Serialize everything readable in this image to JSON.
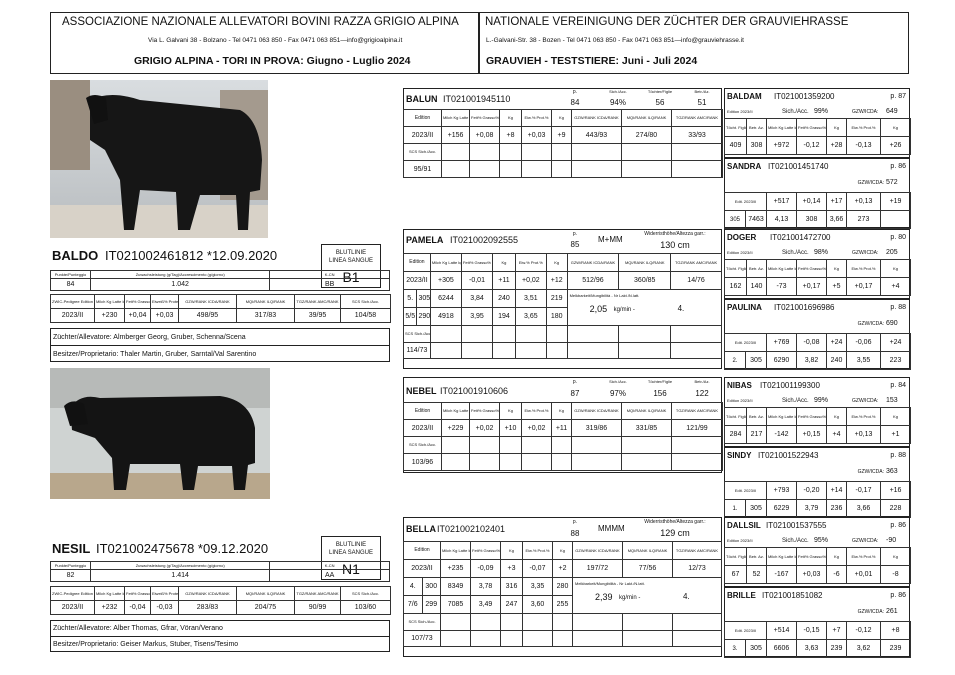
{
  "header": {
    "left_title": "ASSOCIAZIONE NAZIONALE ALLEVATORI BOVINI RAZZA GRIGIO ALPINA",
    "left_address": "Via L. Galvani 38 - Bolzano - Tel 0471 063 850 - Fax  0471 063 851—info@grigioalpina.it",
    "left_subtitle": "GRIGIO ALPINA - TORI IN PROVA: Giugno - Luglio 2024",
    "right_title": "NATIONALE VEREINIGUNG DER ZÜCHTER DER GRAUVIEHRASSE",
    "right_address": "L.-Galvani-Str. 38 - Bozen - Tel 0471 063 850 - Fax  0471 063 851—info@grauviehrasse.it",
    "right_subtitle": "GRAUVIEH - TESTSTIERE:  Juni - Juli 2024"
  },
  "labels": {
    "pp": "p.",
    "sich": "Sich./Acc.",
    "tochter": "Töchter/Figlie",
    "betr": "Betr./Az.",
    "edition": "Edition",
    "milch": "Milch Kg Latte kg",
    "fett": "Fett% Grasso%",
    "kg": "Kg",
    "eiw": "Eiw.% Prot.%",
    "gzw": "GZW/RANK ICDA/RANK",
    "mqi": "MQI/RANK ILQ/RANK",
    "tgz": "TGZ/RANK AMC/RANK",
    "scs": "SCS Sich./Acc.",
    "widerrist": "Widerristhöhe/Altezza garr.:",
    "melk": "Melkbarkeit/Mungibilità - Nr Lakt./N.latt.",
    "kgmin": "kg/min -",
    "edition2": "Edition 2023/II",
    "sich2": "Sich./Acc.",
    "gzw_icda": "GZW/ICDA:",
    "gzw_acc": "GZW :",
    "tocht_figlie": "Töcht. Figlie",
    "betr_az": "Betr. Az.",
    "kg2": "Kg",
    "hl_s": "HL. s.",
    "edit": "Edit. 2023/II",
    "blutlinie": "BLUTLINIE",
    "linea": "LINEA SANGUE",
    "punkte": "Punkte/Punteggio",
    "zuwachs": "Zuwachsleistung (g/Tag)/Accrescimento (g/giorno)",
    "kcn": "K-CN",
    "zwic": "ZWIC-Pedigree Edition",
    "milch_b": "Milch Kg Latte kg",
    "fett_b": "Fett% Grasso%",
    "eiw_b": "Eiweiß% Proteine%",
    "scs_b": "SCS Sich./Acc."
  },
  "bulls": [
    {
      "name": "BALDO",
      "code": "IT021002461812 *12.09.2020",
      "linea": "B1",
      "punteggio": "84",
      "accrescimento": "1.042",
      "kcn": "BB",
      "edition": "2023/II",
      "milch": "+230",
      "fett": "+0,04",
      "eiw": "+0,03",
      "gzw": "498/95",
      "mqi": "317/83",
      "tgz": "39/95",
      "scs": "104/58",
      "zuechter": "Züchter/Allevatore: Almberger Georg, Gruber, Schenna/Scena",
      "besitzer": "Besitzer/Proprietario: Thaler Martin, Gruber, Sarntal/Val Sarentino"
    },
    {
      "name": "NESIL",
      "code": "IT021002475678 *09.12.2020",
      "linea": "N1",
      "punteggio": "82",
      "accrescimento": "1.414",
      "kcn": "AA",
      "edition": "2023/II",
      "milch": "+232",
      "fett": "-0,04",
      "eiw": "-0,03",
      "gzw": "283/83",
      "mqi": "204/75",
      "tgz": "90/99",
      "scs": "103/60",
      "zuechter": "Züchter/Allevatore: Alber Thomas, Gfrar, Vöran/Verano",
      "besitzer": "Besitzer/Proprietario:  Geiser Markus, Stuber, Tisens/Tesimo"
    }
  ],
  "sires": [
    {
      "name": "BALUN",
      "code": "IT021001945110",
      "p": "84",
      "sich": "94%",
      "tochter": "56",
      "betr": "51",
      "edition": "2023/II",
      "milch": "+156",
      "fett": "+0,08",
      "kg": "+8",
      "eiw": "+0,03",
      "kg2": "+9",
      "gzw": "443/93",
      "mqi": "274/80",
      "tgz": "33/93",
      "scs": "95/91"
    },
    {
      "name": "NEBEL",
      "code": "IT021001910606",
      "p": "87",
      "sich": "97%",
      "tochter": "156",
      "betr": "122",
      "edition": "2023/II",
      "milch": "+229",
      "fett": "+0,02",
      "kg": "+10",
      "eiw": "+0,02",
      "kg2": "+11",
      "gzw": "319/86",
      "mqi": "331/85",
      "tgz": "121/99",
      "scs": "103/96"
    }
  ],
  "dams": [
    {
      "name": "PAMELA",
      "code": "IT021002092555",
      "p": "85",
      "class": "M+MM",
      "height": "130 cm",
      "edition": "2023/II",
      "milch": "+305",
      "fett": "-0,01",
      "kg": "+11",
      "eiw": "+0,02",
      "kg2": "+12",
      "gzw": "512/96",
      "mqi": "360/85",
      "tgz": "14/76",
      "row1": [
        "5.",
        "305",
        "6244",
        "3,84",
        "240",
        "3,51",
        "219"
      ],
      "row2": [
        "5/5",
        "290",
        "4918",
        "3,95",
        "194",
        "3,65",
        "180"
      ],
      "melk": "2,05",
      "lakt": "4.",
      "scs": "114/73"
    },
    {
      "name": "BELLA",
      "code": "IT021002102401",
      "p": "88",
      "class": "MMMM",
      "height": "129 cm",
      "edition": "2023/II",
      "milch": "+235",
      "fett": "-0,09",
      "kg": "+3",
      "eiw": "-0,07",
      "kg2": "+2",
      "gzw": "197/72",
      "mqi": "77/56",
      "tgz": "12/73",
      "row1": [
        "4.",
        "300",
        "8349",
        "3,78",
        "316",
        "3,35",
        "280"
      ],
      "row2": [
        "7/6",
        "299",
        "7085",
        "3,49",
        "247",
        "3,60",
        "255"
      ],
      "melk": "2,39",
      "lakt": "4.",
      "scs": "107/73"
    }
  ],
  "grand": [
    {
      "top_name": "BALDAM",
      "top_code": "IT021001359200",
      "top_p": "p. 87",
      "top_sich": "99%",
      "top_gzw": "649",
      "top_row": [
        "409",
        "308",
        "+972",
        "-0,12",
        "+28",
        "-0,13",
        "+26"
      ],
      "bot_name": "SANDRA",
      "bot_code": "IT021001451740",
      "bot_p": "p. 86",
      "bot_gzw": "572",
      "bot_row1": [
        "+517",
        "+0,14",
        "+17",
        "+0,13",
        "+19"
      ],
      "bot_row2": [
        "305",
        "7463",
        "4,13",
        "308",
        "3,66",
        "273"
      ]
    },
    {
      "top_name": "DOGER",
      "top_code": "IT021001472700",
      "top_p": "p. 80",
      "top_sich": "98%",
      "top_gzw": "205",
      "top_row": [
        "162",
        "140",
        "-73",
        "+0,17",
        "+5",
        "+0,17",
        "+4"
      ],
      "bot_name": "PAULINA",
      "bot_code": "IT021001696986",
      "bot_p": "p. 88",
      "bot_gzw": "690",
      "bot_row1": [
        "+769",
        "-0,08",
        "+24",
        "-0,06",
        "+24"
      ],
      "bot_row2": [
        "2.",
        "305",
        "6290",
        "3,82",
        "240",
        "3,55",
        "223"
      ]
    },
    {
      "top_name": "NIBAS",
      "top_code": "IT021001199300",
      "top_p": "p. 84",
      "top_sich": "99%",
      "top_gzw": "153",
      "top_row": [
        "284",
        "217",
        "-142",
        "+0,15",
        "+4",
        "+0,13",
        "+1"
      ],
      "bot_name": "SINDY",
      "bot_code": "IT021001522943",
      "bot_p": "p. 88",
      "bot_gzw": "363",
      "bot_row1": [
        "+793",
        "-0,20",
        "+14",
        "-0,17",
        "+16"
      ],
      "bot_row2": [
        "1.",
        "305",
        "6229",
        "3,79",
        "236",
        "3,66",
        "228"
      ]
    },
    {
      "top_name": "DALLSIL",
      "top_code": "IT021001537555",
      "top_p": "p. 86",
      "top_sich": "95%",
      "top_gzw": "-90",
      "top_row": [
        "67",
        "52",
        "-167",
        "+0,03",
        "-6",
        "+0,01",
        "-8"
      ],
      "bot_name": "BRILLE",
      "bot_code": "IT021001851082",
      "bot_p": "p. 86",
      "bot_gzw": "261",
      "bot_row1": [
        "+514",
        "-0,15",
        "+7",
        "-0,12",
        "+8"
      ],
      "bot_row2": [
        "3.",
        "305",
        "6606",
        "3,63",
        "239",
        "3,62",
        "239"
      ]
    }
  ]
}
